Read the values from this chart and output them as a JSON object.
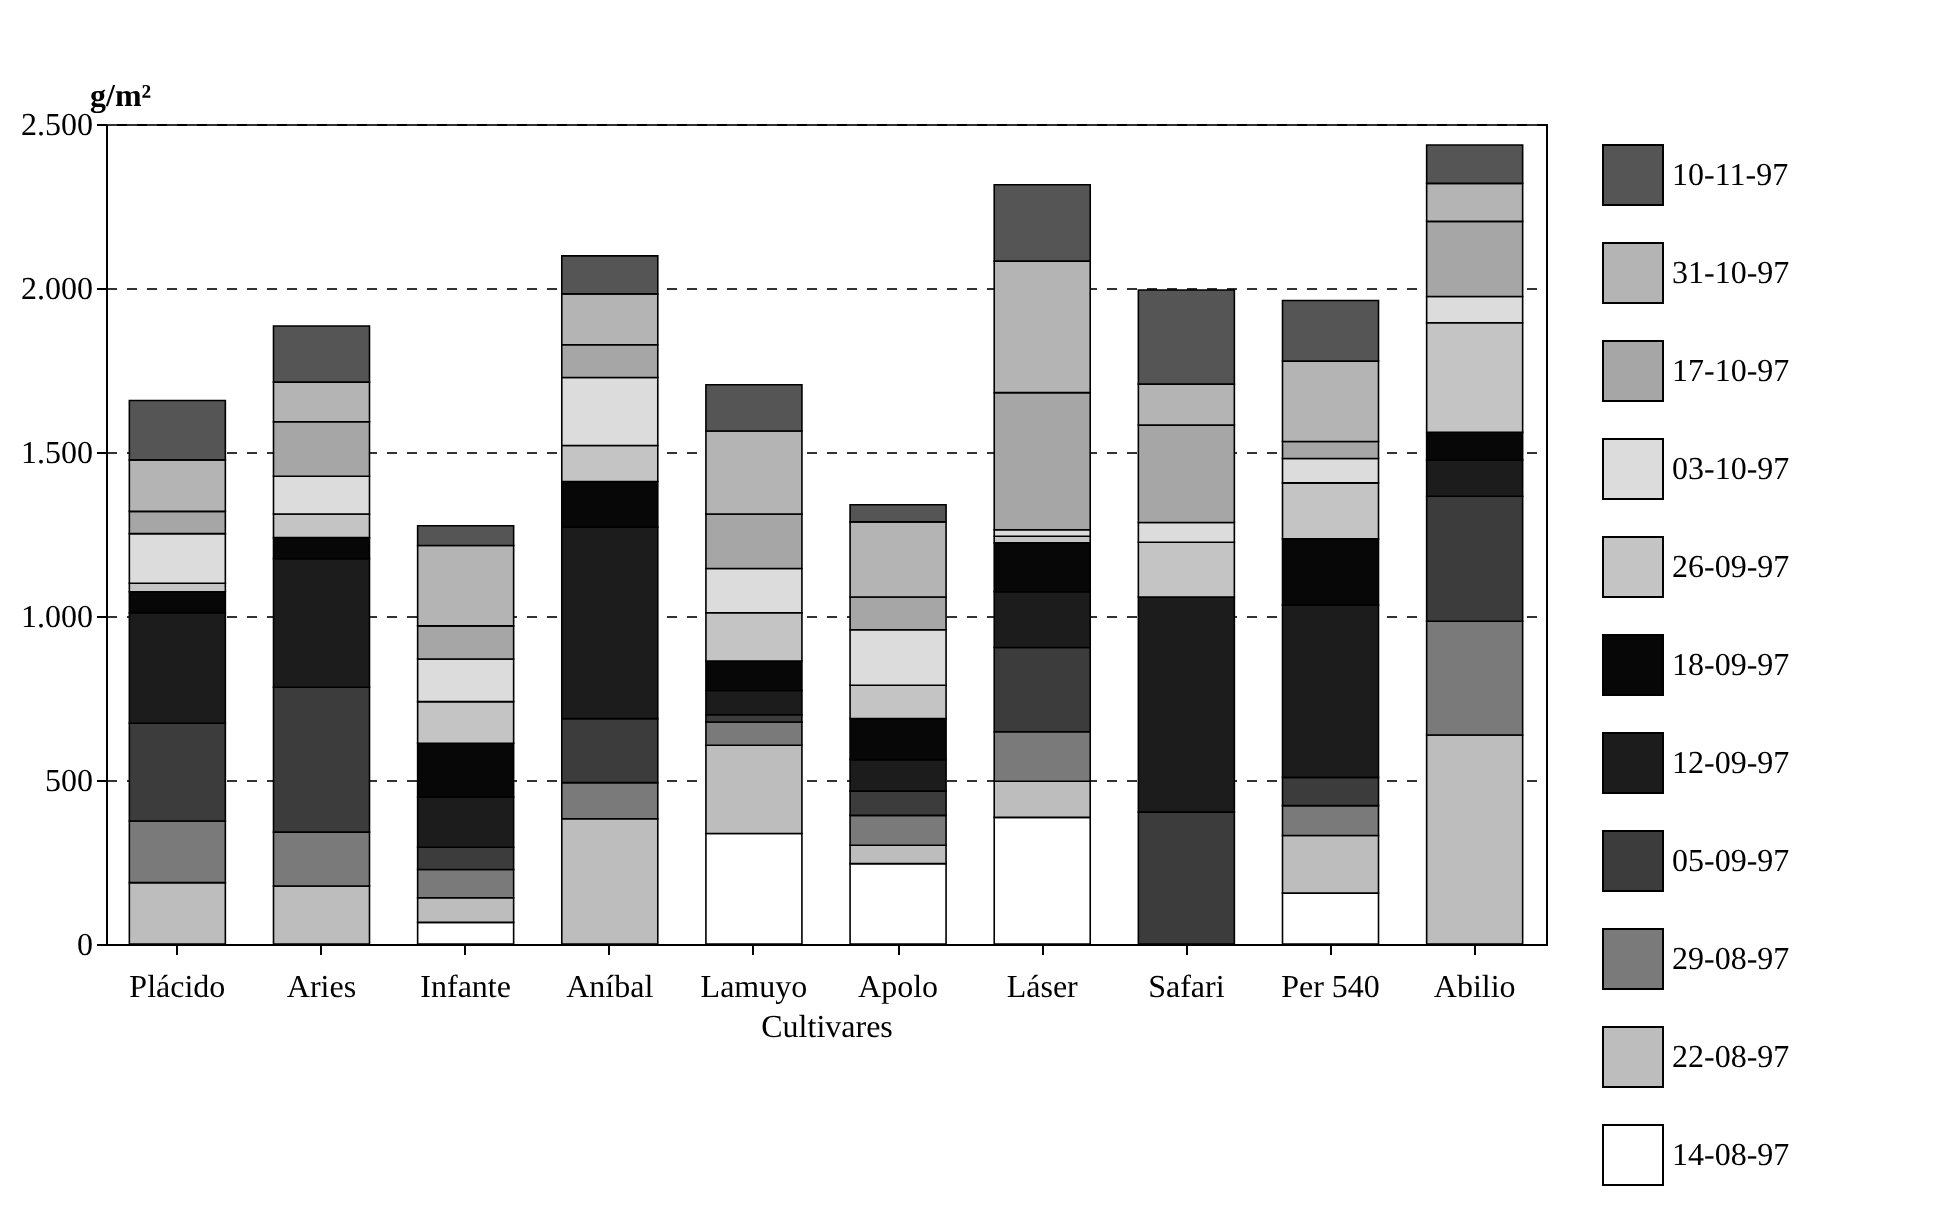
{
  "chart_data": {
    "type": "bar",
    "stacked": true,
    "ylabel": "g/m²",
    "xlabel": "Cultivares",
    "categories": [
      "Plácido",
      "Aries",
      "Infante",
      "Aníbal",
      "Lamuyo",
      "Apolo",
      "Láser",
      "Safari",
      "Per 540",
      "Abilio"
    ],
    "ylim": [
      0,
      2500
    ],
    "yticks": [
      0,
      500,
      {
        "value": 1000,
        "label": "1.000"
      },
      {
        "value": 1500,
        "label": "1.500"
      },
      {
        "value": 2000,
        "label": "2.000"
      },
      {
        "value": 2500,
        "label": "2.500"
      }
    ],
    "grid": "y",
    "legend": "right",
    "series": [
      {
        "name": "14-08-97",
        "color": "#ffffff",
        "values": [
          0,
          0,
          66,
          0,
          337,
          245,
          386,
          0,
          155,
          0
        ]
      },
      {
        "name": "22-08-97",
        "color": "#bdbdbd",
        "values": [
          187,
          177,
          75,
          382,
          269,
          56,
          110,
          0,
          176,
          637
        ]
      },
      {
        "name": "29-08-97",
        "color": "#7a7a7a",
        "values": [
          188,
          164,
          86,
          110,
          71,
          91,
          151,
          0,
          91,
          347
        ]
      },
      {
        "name": "05-09-97",
        "color": "#3c3c3c",
        "values": [
          298,
          442,
          68,
          195,
          22,
          74,
          257,
          402,
          86,
          381
        ]
      },
      {
        "name": "12-09-97",
        "color": "#1c1c1c",
        "values": [
          337,
          392,
          153,
          584,
          74,
          96,
          170,
          656,
          526,
          111
        ]
      },
      {
        "name": "18-09-97",
        "color": "#070707",
        "values": [
          64,
          64,
          164,
          139,
          90,
          125,
          149,
          0,
          201,
          84
        ]
      },
      {
        "name": "26-09-97",
        "color": "#c4c4c4",
        "values": [
          26,
          72,
          127,
          110,
          147,
          102,
          20,
          167,
          171,
          334
        ]
      },
      {
        "name": "03-10-97",
        "color": "#dcdcdc",
        "values": [
          151,
          115,
          130,
          207,
          135,
          169,
          20,
          60,
          74,
          80
        ]
      },
      {
        "name": "17-10-97",
        "color": "#a6a6a6",
        "values": [
          68,
          166,
          101,
          100,
          166,
          100,
          418,
          297,
          52,
          229
        ]
      },
      {
        "name": "31-10-97",
        "color": "#b4b4b4",
        "values": [
          157,
          121,
          245,
          155,
          253,
          229,
          401,
          125,
          245,
          116
        ]
      },
      {
        "name": "10-11-97",
        "color": "#555555",
        "values": [
          181,
          171,
          60,
          116,
          141,
          52,
          233,
          287,
          185,
          117
        ]
      }
    ]
  }
}
